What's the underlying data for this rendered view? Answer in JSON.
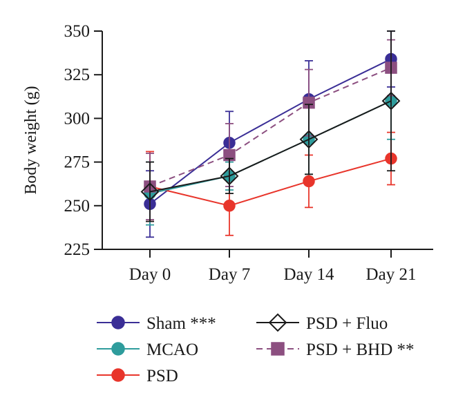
{
  "chart_data": {
    "type": "line",
    "title": "",
    "xlabel": "",
    "ylabel": "Body weight (g)",
    "categories": [
      "Day 0",
      "Day 7",
      "Day 14",
      "Day 21"
    ],
    "ylim": [
      225,
      350
    ],
    "yticks": [
      225,
      250,
      275,
      300,
      325,
      350
    ],
    "grid": false,
    "legend_position": "bottom",
    "series": [
      {
        "name": "Sham ***",
        "values": [
          251,
          286,
          311,
          334
        ],
        "errors": [
          19,
          18,
          22,
          16
        ],
        "color": "#3a2e96",
        "marker": "circle",
        "dash": "solid",
        "fill": "#3a2e96"
      },
      {
        "name": "MCAO",
        "values": [
          257,
          267,
          288,
          310
        ],
        "errors": [
          18,
          8,
          20,
          22
        ],
        "color": "#2e9c9c",
        "marker": "circle",
        "dash": "solid",
        "fill": "#2e9c9c"
      },
      {
        "name": "PSD",
        "values": [
          261,
          250,
          264,
          277
        ],
        "errors": [
          20,
          17,
          15,
          15
        ],
        "color": "#e8352b",
        "marker": "circle",
        "dash": "solid",
        "fill": "#e8352b"
      },
      {
        "name": "PSD + Fluo",
        "values": [
          258,
          267,
          288,
          310
        ],
        "errors": [
          17,
          10,
          20,
          40
        ],
        "color": "#1a1a1a",
        "marker": "diamond",
        "dash": "solid",
        "fill": "none"
      },
      {
        "name": "PSD + BHD **",
        "values": [
          261,
          279,
          309,
          329
        ],
        "errors": [
          19,
          18,
          19,
          16
        ],
        "color": "#8c4f80",
        "marker": "square",
        "dash": "dashed",
        "fill": "#8c4f80"
      }
    ]
  }
}
